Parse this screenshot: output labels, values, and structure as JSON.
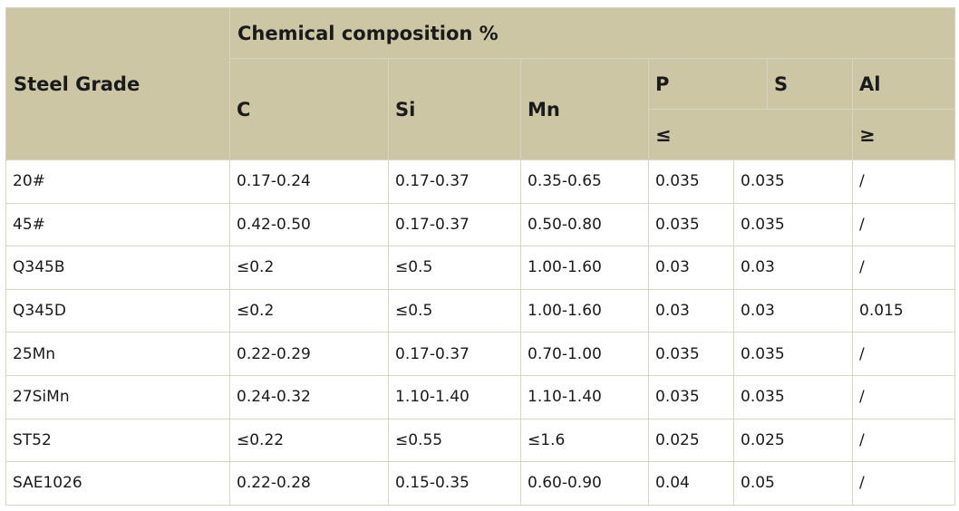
{
  "header": {
    "steel_grade": "Steel Grade",
    "chemical_composition": "Chemical composition %",
    "c": "C",
    "si": "Si",
    "mn": "Mn",
    "p": "P",
    "s": "S",
    "al": "Al",
    "le": "≤",
    "ge": "≥"
  },
  "rows": [
    {
      "grade": "20#",
      "c": "0.17-0.24",
      "si": "0.17-0.37",
      "mn": "0.35-0.65",
      "p": "0.035",
      "s": "0.035",
      "al": "/"
    },
    {
      "grade": "45#",
      "c": "0.42-0.50",
      "si": "0.17-0.37",
      "mn": "0.50-0.80",
      "p": "0.035",
      "s": "0.035",
      "al": "/"
    },
    {
      "grade": "Q345B",
      "c": "≤0.2",
      "si": "≤0.5",
      "mn": "1.00-1.60",
      "p": "0.03",
      "s": "0.03",
      "al": "/"
    },
    {
      "grade": "Q345D",
      "c": "≤0.2",
      "si": "≤0.5",
      "mn": "1.00-1.60",
      "p": "0.03",
      "s": "0.03",
      "al": "0.015"
    },
    {
      "grade": "25Mn",
      "c": "0.22-0.29",
      "si": "0.17-0.37",
      "mn": "0.70-1.00",
      "p": "0.035",
      "s": "0.035",
      "al": "/"
    },
    {
      "grade": "27SiMn",
      "c": "0.24-0.32",
      "si": "1.10-1.40",
      "mn": "1.10-1.40",
      "p": "0.035",
      "s": "0.035",
      "al": "/"
    },
    {
      "grade": "ST52",
      "c": "≤0.22",
      "si": "≤0.55",
      "mn": "≤1.6",
      "p": "0.025",
      "s": "0.025",
      "al": "/"
    },
    {
      "grade": "SAE1026",
      "c": "0.22-0.28",
      "si": "0.15-0.35",
      "mn": "0.60-0.90",
      "p": "0.04",
      "s": "0.05",
      "al": "/"
    }
  ],
  "colors": {
    "header_bg": "#cdc6a5",
    "border": "#d8d4c4"
  }
}
